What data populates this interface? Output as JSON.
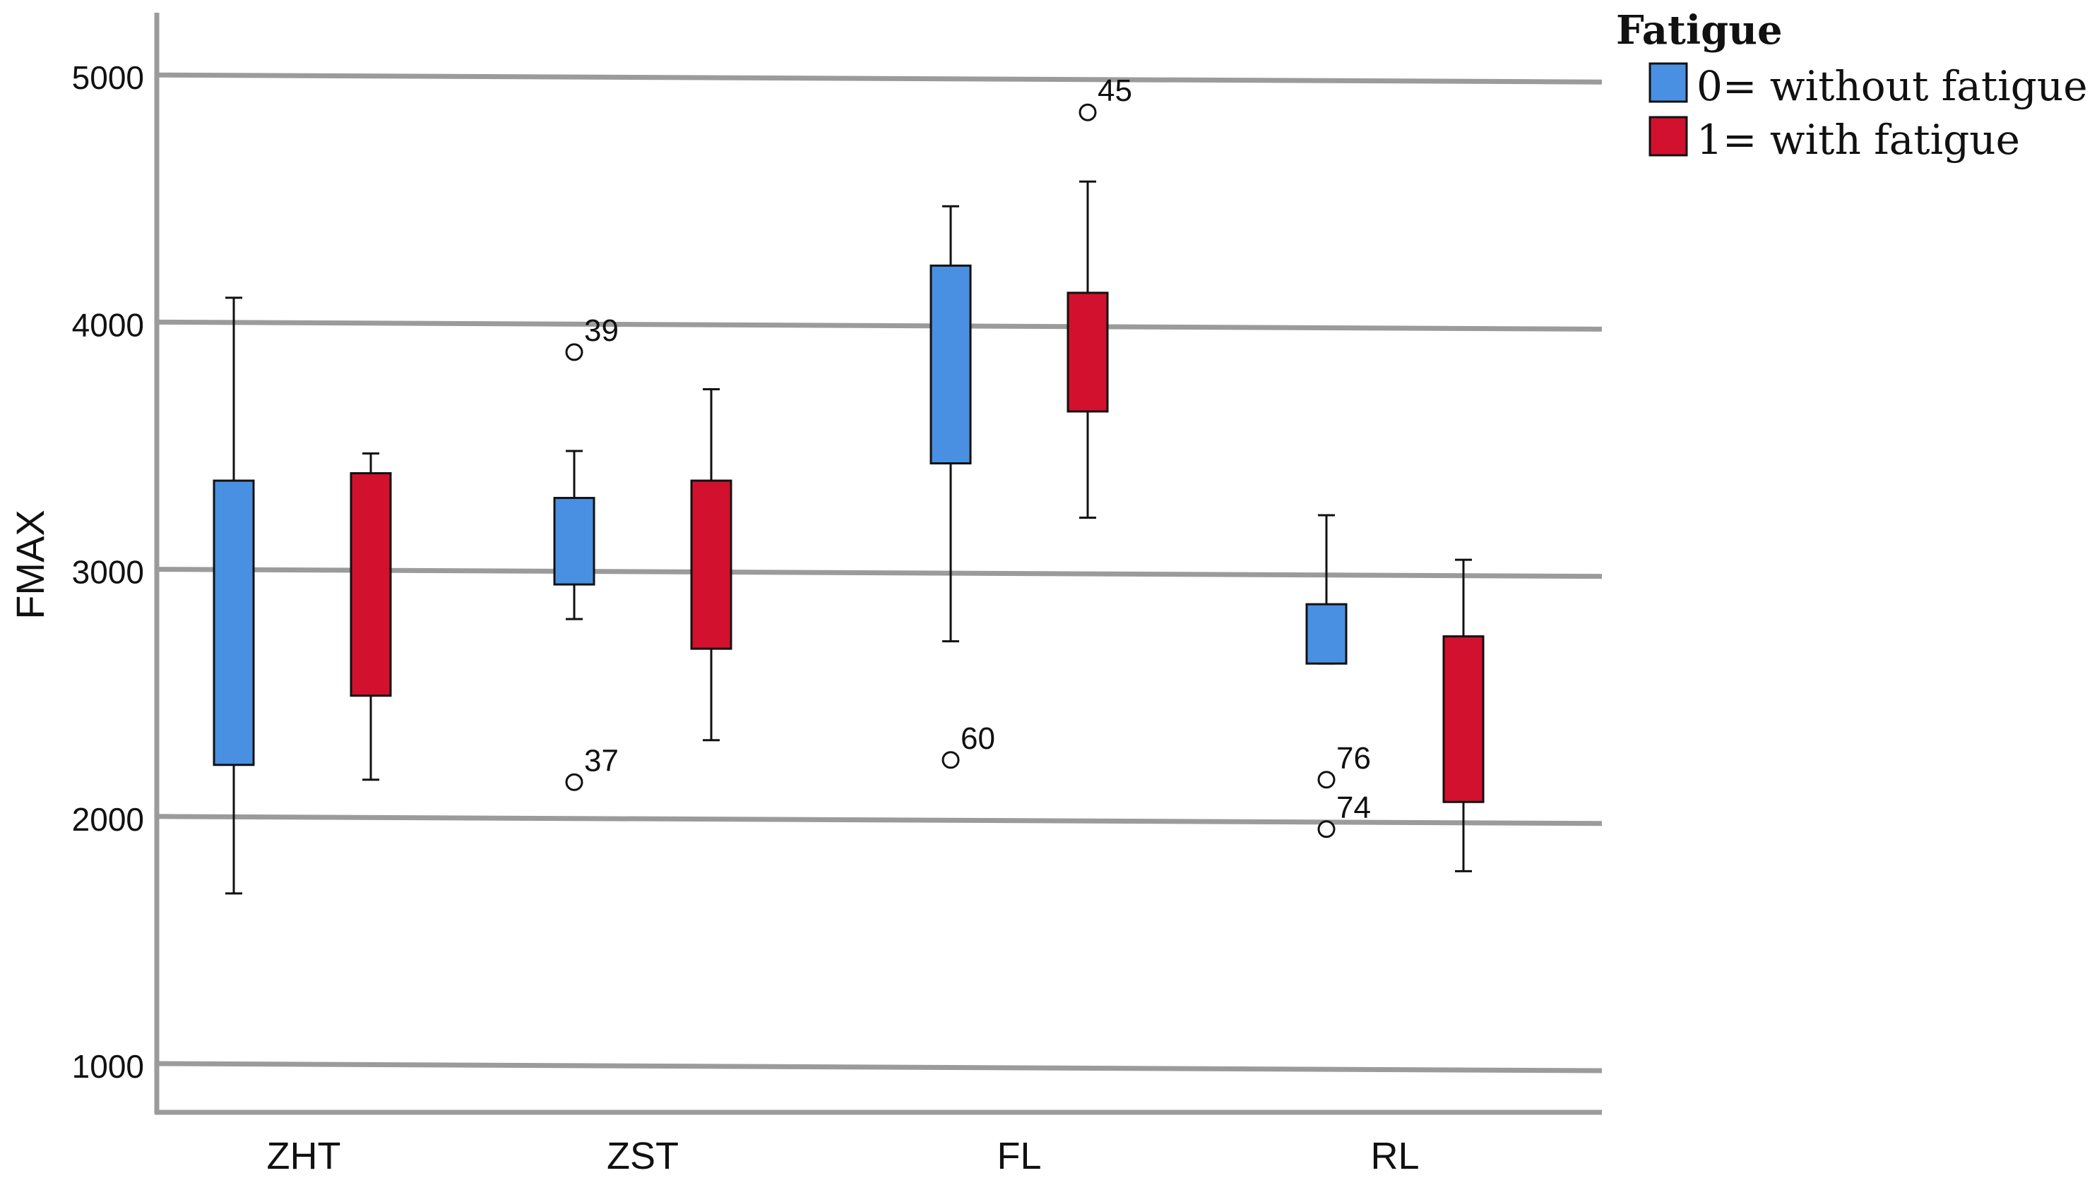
{
  "chart_data": {
    "type": "boxplot",
    "title": "",
    "xlabel": "",
    "ylabel": "FMAX",
    "ylim": [
      800,
      5200
    ],
    "yticks": [
      1000,
      2000,
      3000,
      4000,
      5000
    ],
    "ytick_labels": [
      "1000",
      "2000",
      "3000",
      "4000",
      "5000"
    ],
    "grid": "horizontal",
    "categories": [
      "ZHT",
      "ZST",
      "FL",
      "RL"
    ],
    "legend": {
      "title": "Fatigue",
      "position": "top-right",
      "entries": [
        {
          "label": "0= without fatigue",
          "color": "#4a90e2"
        },
        {
          "label": "1= with fatigue",
          "color": "#d2112e"
        }
      ]
    },
    "series": [
      {
        "name": "0= without fatigue",
        "color": "#4a90e2",
        "boxes": [
          {
            "category": "ZHT",
            "whisker_low": 1700,
            "q1": 2220,
            "q3": 3370,
            "whisker_high": 4110,
            "outliers": []
          },
          {
            "category": "ZST",
            "whisker_low": 2810,
            "q1": 2950,
            "q3": 3300,
            "whisker_high": 3490,
            "outliers": [
              {
                "value": 3890,
                "label": "39"
              },
              {
                "value": 2150,
                "label": "37"
              }
            ]
          },
          {
            "category": "FL",
            "whisker_low": 2720,
            "q1": 3440,
            "q3": 4240,
            "whisker_high": 4480,
            "outliers": [
              {
                "value": 2240,
                "label": "60"
              }
            ]
          },
          {
            "category": "RL",
            "whisker_low": 2630,
            "q1": 2630,
            "q3": 2870,
            "whisker_high": 3230,
            "outliers": [
              {
                "value": 2160,
                "label": "76"
              },
              {
                "value": 1960,
                "label": "74"
              }
            ]
          }
        ]
      },
      {
        "name": "1= with fatigue",
        "color": "#d2112e",
        "boxes": [
          {
            "category": "ZHT",
            "whisker_low": 2160,
            "q1": 2500,
            "q3": 3400,
            "whisker_high": 3480,
            "outliers": []
          },
          {
            "category": "ZST",
            "whisker_low": 2320,
            "q1": 2690,
            "q3": 3370,
            "whisker_high": 3740,
            "outliers": []
          },
          {
            "category": "FL",
            "whisker_low": 3220,
            "q1": 3650,
            "q3": 4130,
            "whisker_high": 4580,
            "outliers": [
              {
                "value": 4860,
                "label": "45"
              }
            ]
          },
          {
            "category": "RL",
            "whisker_low": 1790,
            "q1": 2070,
            "q3": 2740,
            "whisker_high": 3050,
            "outliers": []
          }
        ]
      }
    ]
  }
}
